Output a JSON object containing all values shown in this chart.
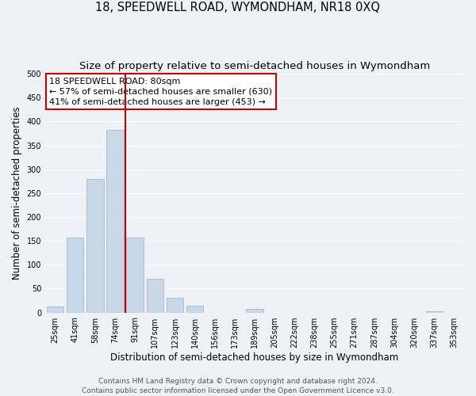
{
  "title": "18, SPEEDWELL ROAD, WYMONDHAM, NR18 0XQ",
  "subtitle": "Size of property relative to semi-detached houses in Wymondham",
  "xlabel": "Distribution of semi-detached houses by size in Wymondham",
  "ylabel": "Number of semi-detached properties",
  "categories": [
    "25sqm",
    "41sqm",
    "58sqm",
    "74sqm",
    "91sqm",
    "107sqm",
    "123sqm",
    "140sqm",
    "156sqm",
    "173sqm",
    "189sqm",
    "205sqm",
    "222sqm",
    "238sqm",
    "255sqm",
    "271sqm",
    "287sqm",
    "304sqm",
    "320sqm",
    "337sqm",
    "353sqm"
  ],
  "values": [
    12,
    157,
    280,
    383,
    157,
    70,
    30,
    15,
    0,
    0,
    7,
    0,
    0,
    0,
    0,
    0,
    0,
    0,
    0,
    3,
    0
  ],
  "bar_color": "#c8d8e8",
  "bar_edge_color": "#a8b8c8",
  "vline_color": "#cc0000",
  "vline_pos": 3.5,
  "annotation_title": "18 SPEEDWELL ROAD: 80sqm",
  "annotation_line1": "← 57% of semi-detached houses are smaller (630)",
  "annotation_line2": "41% of semi-detached houses are larger (453) →",
  "annotation_box_facecolor": "#ffffff",
  "annotation_box_edgecolor": "#cc0000",
  "ylim": [
    0,
    500
  ],
  "yticks": [
    0,
    50,
    100,
    150,
    200,
    250,
    300,
    350,
    400,
    450,
    500
  ],
  "footnote1": "Contains HM Land Registry data © Crown copyright and database right 2024.",
  "footnote2": "Contains public sector information licensed under the Open Government Licence v3.0.",
  "bg_color": "#eef2f7",
  "grid_color": "#ffffff",
  "title_fontsize": 10.5,
  "subtitle_fontsize": 9.5,
  "xlabel_fontsize": 8.5,
  "ylabel_fontsize": 8.5,
  "tick_fontsize": 7,
  "annot_fontsize": 8,
  "footnote_fontsize": 6.5
}
